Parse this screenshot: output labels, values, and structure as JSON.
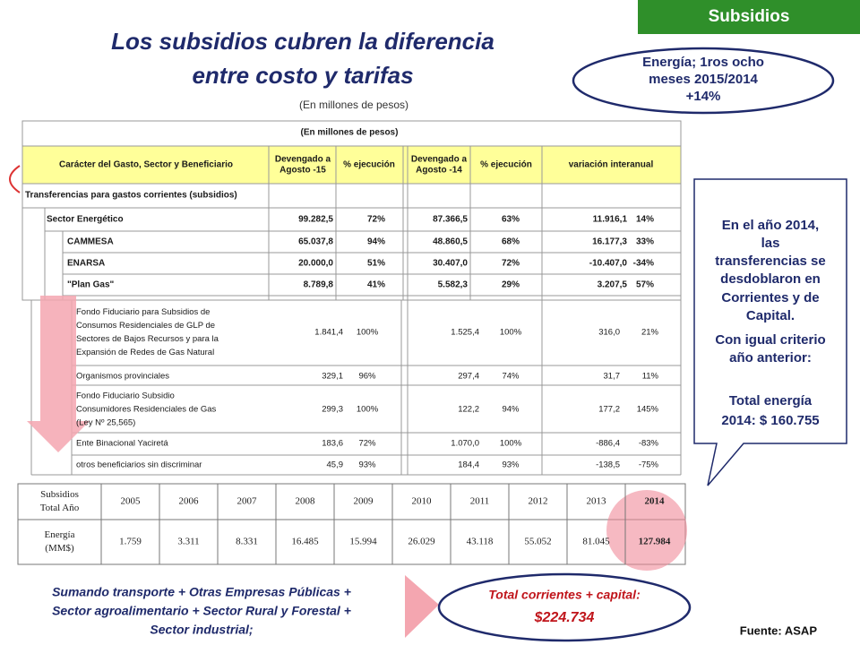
{
  "badge": "Subsidios",
  "title": [
    "Los subsidios cubren la diferencia",
    "entre costo y tarifas"
  ],
  "units_note": "(En millones de pesos)",
  "highlight": [
    "Energía; 1ros  ocho",
    "meses 2015/2014",
    "+14%"
  ],
  "table_top": {
    "caption": "(En millones de pesos)",
    "header": [
      [
        "Carácter del Gasto, Sector y Beneficiario"
      ],
      [
        "Devengado a",
        "Agosto -15"
      ],
      [
        "% ejecución"
      ],
      [
        "Devengado a",
        "Agosto -14"
      ],
      [
        "% ejecución"
      ],
      [
        "variación interanual"
      ]
    ],
    "rows": [
      {
        "label": "Transferencias para gastos corrientes (subsidios)"
      },
      {
        "label": "Sector Energético",
        "values": [
          "99.282,5",
          "72%",
          "87.366,5",
          "63%",
          "11.916,1",
          "14%"
        ]
      },
      {
        "label": "CAMMESA",
        "values": [
          "65.037,8",
          "94%",
          "48.860,5",
          "68%",
          "16.177,3",
          "33%"
        ]
      },
      {
        "label": "ENARSA",
        "values": [
          "20.000,0",
          "51%",
          "30.407,0",
          "72%",
          "-10.407,0",
          "-34%"
        ]
      },
      {
        "label": "\"Plan Gas\"",
        "values": [
          "8.789,8",
          "41%",
          "5.582,3",
          "29%",
          "3.207,5",
          "57%"
        ]
      }
    ]
  },
  "table_detail": {
    "rows": [
      {
        "label": [
          "Fondo Fiduciario para Subsidios de",
          "Consumos Residenciales de GLP de",
          "Sectores de Bajos Recursos y para la",
          "Expansión de Redes de Gas Natural"
        ],
        "values": [
          "1.841,4",
          "100%",
          "1.525,4",
          "100%",
          "316,0",
          "21%"
        ]
      },
      {
        "label": [
          "Organismos provinciales"
        ],
        "values": [
          "329,1",
          "96%",
          "297,4",
          "74%",
          "31,7",
          "11%"
        ]
      },
      {
        "label": [
          "Fondo Fiduciario Subsidio",
          "Consumidores Residenciales de Gas",
          "(Ley Nº 25,565)"
        ],
        "values": [
          "299,3",
          "100%",
          "122,2",
          "94%",
          "177,2",
          "145%"
        ]
      },
      {
        "label": [
          "Ente Binacional Yaciretá"
        ],
        "values": [
          "183,6",
          "72%",
          "1.070,0",
          "100%",
          "-886,4",
          "-83%"
        ]
      },
      {
        "label": [
          "otros beneficiarios sin discriminar"
        ],
        "values": [
          "45,9",
          "93%",
          "184,4",
          "93%",
          "-138,5",
          "-75%"
        ]
      }
    ]
  },
  "callout": [
    [
      "En el año 2014,",
      "las",
      "transferencias se",
      "desdoblaron en",
      "Corrientes y de",
      "Capital."
    ],
    [
      "Con igual criterio",
      "año anterior:"
    ],
    [
      "Total energía",
      "2014: $ 160.755"
    ]
  ],
  "table_years": {
    "header": [
      [
        "Subsidios",
        "Total Año"
      ],
      "2005",
      "2006",
      "2007",
      "2008",
      "2009",
      "2010",
      "2011",
      "2012",
      "2013",
      "2014"
    ],
    "row": [
      [
        "Energía",
        "(MM$)"
      ],
      "1.759",
      "3.311",
      "8.331",
      "16.485",
      "15.994",
      "26.029",
      "43.118",
      "55.052",
      "81.045",
      "127.984"
    ]
  },
  "footer_note": [
    "Sumando transporte + Otras Empresas Públicas +",
    "Sector agroalimentario + Sector Rural y Forestal +",
    "Sector industrial;"
  ],
  "total": {
    "label": "Total corrientes + capital:",
    "value": "$224.734"
  },
  "source": "Fuente: ASAP"
}
